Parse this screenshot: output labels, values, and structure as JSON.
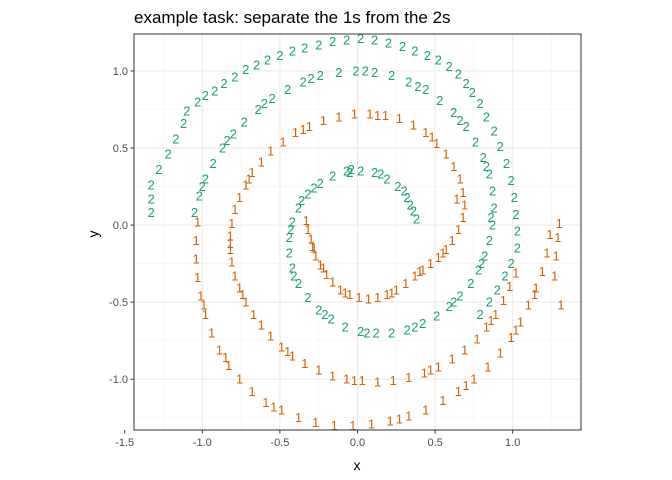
{
  "chart_data": {
    "type": "scatter",
    "title": "example task: separate the 1s from the 2s",
    "xlabel": "x",
    "ylabel": "y",
    "xlim": [
      -1.44,
      1.44
    ],
    "ylim": [
      -1.33,
      1.24
    ],
    "x_ticks": [
      -1.5,
      -1.0,
      -0.5,
      0.0,
      0.5,
      1.0
    ],
    "x_tick_labels": [
      "-1.5",
      "-1.0",
      "-0.5",
      "0.0",
      "0.5",
      "1.0"
    ],
    "y_ticks": [
      -1.0,
      -0.5,
      0.0,
      0.5,
      1.0
    ],
    "y_tick_labels": [
      "-1.0",
      "-0.5",
      "0.0",
      "0.5",
      "1.0"
    ],
    "grid": true,
    "legend": "none",
    "marker": "text label",
    "series": [
      {
        "label": "1",
        "color": "#d95f02",
        "points": [
          [
            -0.33,
            0.03
          ],
          [
            -0.32,
            -0.03
          ],
          [
            -0.3,
            -0.09
          ],
          [
            -0.29,
            -0.14
          ],
          [
            -0.27,
            -0.2
          ],
          [
            -0.24,
            -0.26
          ],
          [
            -0.2,
            -0.32
          ],
          [
            -0.16,
            -0.37
          ],
          [
            -0.11,
            -0.42
          ],
          [
            -0.05,
            -0.45
          ],
          [
            0.01,
            -0.47
          ],
          [
            0.07,
            -0.48
          ],
          [
            0.13,
            -0.47
          ],
          [
            0.19,
            -0.45
          ],
          [
            0.25,
            -0.42
          ],
          [
            0.31,
            -0.38
          ],
          [
            0.37,
            -0.33
          ],
          [
            0.42,
            -0.29
          ],
          [
            0.47,
            -0.25
          ],
          [
            0.52,
            -0.21
          ],
          [
            0.57,
            -0.16
          ],
          [
            0.61,
            -0.1
          ],
          [
            0.65,
            -0.03
          ],
          [
            0.68,
            0.05
          ],
          [
            0.69,
            0.13
          ],
          [
            0.68,
            0.21
          ],
          [
            0.66,
            0.3
          ],
          [
            0.62,
            0.38
          ],
          [
            0.57,
            0.46
          ],
          [
            0.51,
            0.53
          ],
          [
            0.44,
            0.6
          ],
          [
            0.36,
            0.65
          ],
          [
            0.27,
            0.69
          ],
          [
            0.18,
            0.71
          ],
          [
            0.08,
            0.72
          ],
          [
            -0.02,
            0.72
          ],
          [
            -0.12,
            0.7
          ],
          [
            -0.22,
            0.68
          ],
          [
            -0.31,
            0.64
          ],
          [
            -0.4,
            0.6
          ],
          [
            -0.48,
            0.54
          ],
          [
            -0.56,
            0.48
          ],
          [
            -0.62,
            0.41
          ],
          [
            -0.68,
            0.34
          ],
          [
            -0.72,
            0.26
          ],
          [
            -0.76,
            0.18
          ],
          [
            -0.79,
            0.1
          ],
          [
            -0.81,
            0.01
          ],
          [
            -0.82,
            -0.07
          ],
          [
            -0.82,
            -0.16
          ],
          [
            -0.81,
            -0.24
          ],
          [
            -0.79,
            -0.33
          ],
          [
            -0.76,
            -0.41
          ],
          [
            -0.72,
            -0.5
          ],
          [
            -0.67,
            -0.58
          ],
          [
            -0.62,
            -0.65
          ],
          [
            -0.56,
            -0.72
          ],
          [
            -0.49,
            -0.79
          ],
          [
            -0.42,
            -0.85
          ],
          [
            -0.34,
            -0.9
          ],
          [
            -0.25,
            -0.94
          ],
          [
            -0.16,
            -0.98
          ],
          [
            -0.07,
            -1.0
          ],
          [
            0.03,
            -1.01
          ],
          [
            0.13,
            -1.02
          ],
          [
            0.23,
            -1.01
          ],
          [
            0.33,
            -0.99
          ],
          [
            0.43,
            -0.96
          ],
          [
            0.52,
            -0.92
          ],
          [
            0.61,
            -0.87
          ],
          [
            0.69,
            -0.81
          ],
          [
            0.77,
            -0.74
          ],
          [
            0.83,
            -0.66
          ],
          [
            0.89,
            -0.58
          ],
          [
            0.94,
            -0.49
          ],
          [
            0.98,
            -0.4
          ],
          [
            1.02,
            -0.31
          ],
          [
            -0.28,
            -0.15
          ],
          [
            -0.22,
            -0.28
          ],
          [
            -0.08,
            -0.44
          ],
          [
            0.22,
            -0.44
          ],
          [
            0.4,
            -0.3
          ],
          [
            0.55,
            -0.18
          ],
          [
            0.64,
            0.17
          ],
          [
            0.48,
            0.57
          ],
          [
            0.13,
            0.71
          ],
          [
            -0.35,
            0.62
          ],
          [
            -0.7,
            0.3
          ],
          [
            -0.82,
            -0.12
          ],
          [
            -0.74,
            -0.45
          ],
          [
            -0.45,
            -0.82
          ],
          [
            -0.02,
            -1.01
          ],
          [
            0.47,
            -0.94
          ],
          [
            0.86,
            -0.62
          ],
          [
            -1.03,
            0.02
          ],
          [
            -1.04,
            -0.1
          ],
          [
            -1.04,
            -0.22
          ],
          [
            -1.03,
            -0.34
          ],
          [
            -1.01,
            -0.46
          ],
          [
            -0.98,
            -0.58
          ],
          [
            -0.94,
            -0.7
          ],
          [
            -0.89,
            -0.81
          ],
          [
            -0.83,
            -0.91
          ],
          [
            -0.76,
            -1.0
          ],
          [
            -0.68,
            -1.08
          ],
          [
            -0.59,
            -1.15
          ],
          [
            -0.49,
            -1.2
          ],
          [
            -0.38,
            -1.25
          ],
          [
            -0.27,
            -1.28
          ],
          [
            -0.15,
            -1.3
          ],
          [
            -0.03,
            -1.3
          ],
          [
            0.09,
            -1.29
          ],
          [
            0.21,
            -1.27
          ],
          [
            0.33,
            -1.24
          ],
          [
            0.44,
            -1.2
          ],
          [
            0.55,
            -1.14
          ],
          [
            0.65,
            -1.08
          ],
          [
            0.75,
            -1.0
          ],
          [
            0.84,
            -0.92
          ],
          [
            0.92,
            -0.83
          ],
          [
            0.99,
            -0.73
          ],
          [
            1.05,
            -0.63
          ],
          [
            1.1,
            -0.52
          ],
          [
            1.15,
            -0.41
          ],
          [
            1.19,
            -0.3
          ],
          [
            1.22,
            -0.18
          ],
          [
            1.24,
            -0.06
          ],
          [
            -0.99,
            -0.52
          ],
          [
            -0.85,
            -0.86
          ],
          [
            -0.54,
            -1.18
          ],
          [
            0.27,
            -1.26
          ],
          [
            0.7,
            -1.04
          ],
          [
            1.02,
            -0.68
          ],
          [
            1.3,
            0.01
          ],
          [
            1.29,
            -0.08
          ],
          [
            1.28,
            -0.2
          ],
          [
            1.27,
            -0.33
          ],
          [
            1.31,
            -0.52
          ],
          [
            1.14,
            -0.45
          ]
        ]
      },
      {
        "label": "2",
        "color": "#1b9e77",
        "points": [
          [
            0.36,
            0.09
          ],
          [
            0.32,
            0.18
          ],
          [
            0.26,
            0.25
          ],
          [
            0.19,
            0.3
          ],
          [
            0.11,
            0.34
          ],
          [
            0.02,
            0.35
          ],
          [
            -0.07,
            0.35
          ],
          [
            -0.16,
            0.32
          ],
          [
            -0.24,
            0.27
          ],
          [
            -0.32,
            0.2
          ],
          [
            -0.38,
            0.11
          ],
          [
            -0.42,
            0.02
          ],
          [
            -0.44,
            -0.08
          ],
          [
            -0.44,
            -0.18
          ],
          [
            -0.42,
            -0.28
          ],
          [
            -0.38,
            -0.38
          ],
          [
            -0.32,
            -0.47
          ],
          [
            -0.25,
            -0.55
          ],
          [
            -0.17,
            -0.61
          ],
          [
            -0.08,
            -0.66
          ],
          [
            0.02,
            -0.69
          ],
          [
            0.12,
            -0.7
          ],
          [
            0.22,
            -0.7
          ],
          [
            0.32,
            -0.68
          ],
          [
            0.42,
            -0.64
          ],
          [
            0.51,
            -0.59
          ],
          [
            0.59,
            -0.53
          ],
          [
            0.66,
            -0.46
          ],
          [
            0.73,
            -0.38
          ],
          [
            0.78,
            -0.29
          ],
          [
            0.82,
            -0.2
          ],
          [
            0.85,
            -0.1
          ],
          [
            0.87,
            0.0
          ],
          [
            0.88,
            0.11
          ],
          [
            0.87,
            0.22
          ],
          [
            0.85,
            0.33
          ],
          [
            0.81,
            0.44
          ],
          [
            0.76,
            0.54
          ],
          [
            0.7,
            0.64
          ],
          [
            0.62,
            0.73
          ],
          [
            0.53,
            0.81
          ],
          [
            0.44,
            0.88
          ],
          [
            0.33,
            0.93
          ],
          [
            0.22,
            0.97
          ],
          [
            0.11,
            0.99
          ],
          [
            -0.01,
            1.0
          ],
          [
            -0.12,
            0.99
          ],
          [
            -0.24,
            0.97
          ],
          [
            -0.35,
            0.93
          ],
          [
            -0.45,
            0.88
          ],
          [
            -0.55,
            0.82
          ],
          [
            -0.64,
            0.75
          ],
          [
            -0.73,
            0.67
          ],
          [
            -0.8,
            0.59
          ],
          [
            -0.87,
            0.5
          ],
          [
            -0.93,
            0.4
          ],
          [
            -0.98,
            0.3
          ],
          [
            -1.02,
            0.19
          ],
          [
            -1.05,
            0.08
          ],
          [
            0.3,
            0.22
          ],
          [
            0.15,
            0.33
          ],
          [
            -0.04,
            0.36
          ],
          [
            -0.28,
            0.24
          ],
          [
            -0.43,
            -0.03
          ],
          [
            -0.41,
            -0.33
          ],
          [
            -0.21,
            -0.58
          ],
          [
            0.06,
            -0.7
          ],
          [
            0.37,
            -0.66
          ],
          [
            0.62,
            -0.5
          ],
          [
            0.8,
            -0.25
          ],
          [
            0.86,
            0.05
          ],
          [
            0.83,
            0.38
          ],
          [
            0.66,
            0.68
          ],
          [
            0.39,
            0.9
          ],
          [
            0.05,
            1.0
          ],
          [
            -0.3,
            0.95
          ],
          [
            -0.6,
            0.79
          ],
          [
            -0.84,
            0.55
          ],
          [
            -1.0,
            0.25
          ],
          [
            0.38,
            0.04
          ],
          [
            0.34,
            0.13
          ],
          [
            -0.36,
            0.16
          ],
          [
            -0.05,
            0.34
          ],
          [
            -1.33,
            0.08
          ],
          [
            -1.33,
            0.17
          ],
          [
            -1.33,
            0.26
          ],
          [
            -1.28,
            0.36
          ],
          [
            -1.22,
            0.46
          ],
          [
            -1.17,
            0.56
          ],
          [
            -1.12,
            0.66
          ],
          [
            -1.1,
            0.74
          ],
          [
            -1.03,
            0.8
          ],
          [
            -0.98,
            0.84
          ],
          [
            -0.92,
            0.87
          ],
          [
            -0.86,
            0.92
          ],
          [
            -0.79,
            0.96
          ],
          [
            -0.72,
            1.01
          ],
          [
            -0.65,
            1.04
          ],
          [
            -0.58,
            1.07
          ],
          [
            -0.5,
            1.1
          ],
          [
            -0.42,
            1.13
          ],
          [
            -0.34,
            1.15
          ],
          [
            -0.25,
            1.17
          ],
          [
            -0.16,
            1.19
          ],
          [
            -0.07,
            1.2
          ],
          [
            0.02,
            1.21
          ],
          [
            0.11,
            1.2
          ],
          [
            0.2,
            1.18
          ],
          [
            0.29,
            1.16
          ],
          [
            0.37,
            1.13
          ],
          [
            0.45,
            1.1
          ],
          [
            0.52,
            1.07
          ],
          [
            0.59,
            1.03
          ],
          [
            0.65,
            0.98
          ],
          [
            0.7,
            0.92
          ],
          [
            0.74,
            0.86
          ],
          [
            0.79,
            0.79
          ],
          [
            0.83,
            0.7
          ],
          [
            0.88,
            0.61
          ],
          [
            0.92,
            0.51
          ],
          [
            0.96,
            0.4
          ],
          [
            0.99,
            0.29
          ],
          [
            1.01,
            0.18
          ],
          [
            1.02,
            0.07
          ],
          [
            1.03,
            -0.04
          ],
          [
            1.03,
            -0.15
          ],
          [
            0.99,
            -0.25
          ],
          [
            0.95,
            -0.33
          ],
          [
            0.9,
            -0.42
          ],
          [
            0.85,
            -0.5
          ],
          [
            0.79,
            -0.58
          ]
        ]
      }
    ]
  }
}
